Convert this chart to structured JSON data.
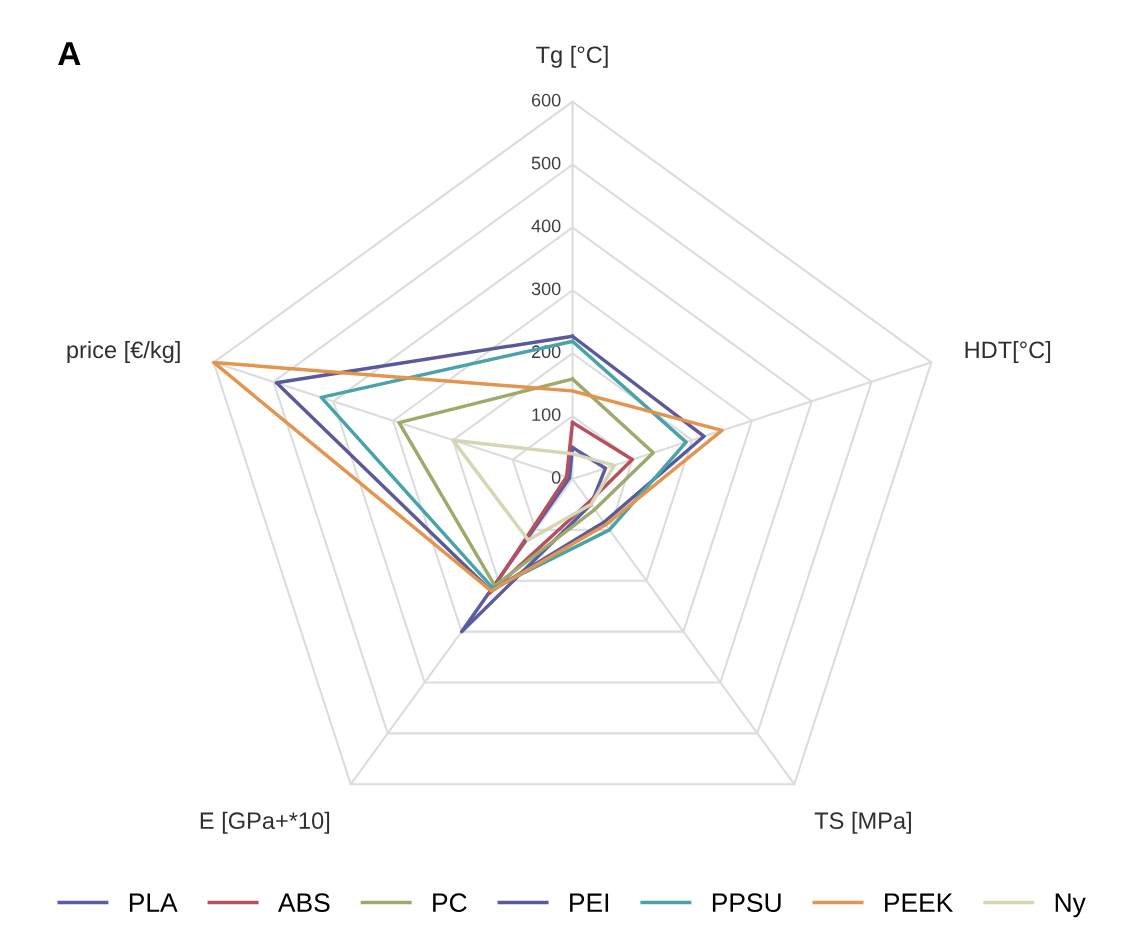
{
  "chart_data": {
    "type": "radar",
    "title": "A",
    "categories": [
      "Tg [°C]",
      "HDT[°C]",
      "TS [MPa]",
      "E [GPa+*10]",
      "price [€/kg]"
    ],
    "ylim": [
      0,
      600
    ],
    "yticks": [
      0,
      100,
      200,
      300,
      400,
      500,
      600
    ],
    "grid": true,
    "legend": "bottom",
    "line_style": "solid",
    "marker": "none",
    "series": [
      {
        "name": "PLA",
        "color": "#5c5ca0",
        "values": [
          50,
          55,
          50,
          300,
          5
        ]
      },
      {
        "name": "ABS",
        "color": "#b5505f",
        "values": [
          90,
          100,
          45,
          225,
          10
        ]
      },
      {
        "name": "PC",
        "color": "#9cab6c",
        "values": [
          159,
          135,
          60,
          210,
          290
        ]
      },
      {
        "name": "PEI",
        "color": "#5a5a98",
        "values": [
          227,
          220,
          85,
          220,
          495
        ]
      },
      {
        "name": "PPSU",
        "color": "#4aa3aa",
        "values": [
          219,
          190,
          100,
          215,
          420
        ]
      },
      {
        "name": "PEEK",
        "color": "#e39550",
        "values": [
          140,
          250,
          90,
          220,
          600
        ]
      },
      {
        "name": "Ny",
        "color": "#d6d6b4",
        "values": [
          40,
          70,
          50,
          120,
          200
        ]
      }
    ]
  }
}
